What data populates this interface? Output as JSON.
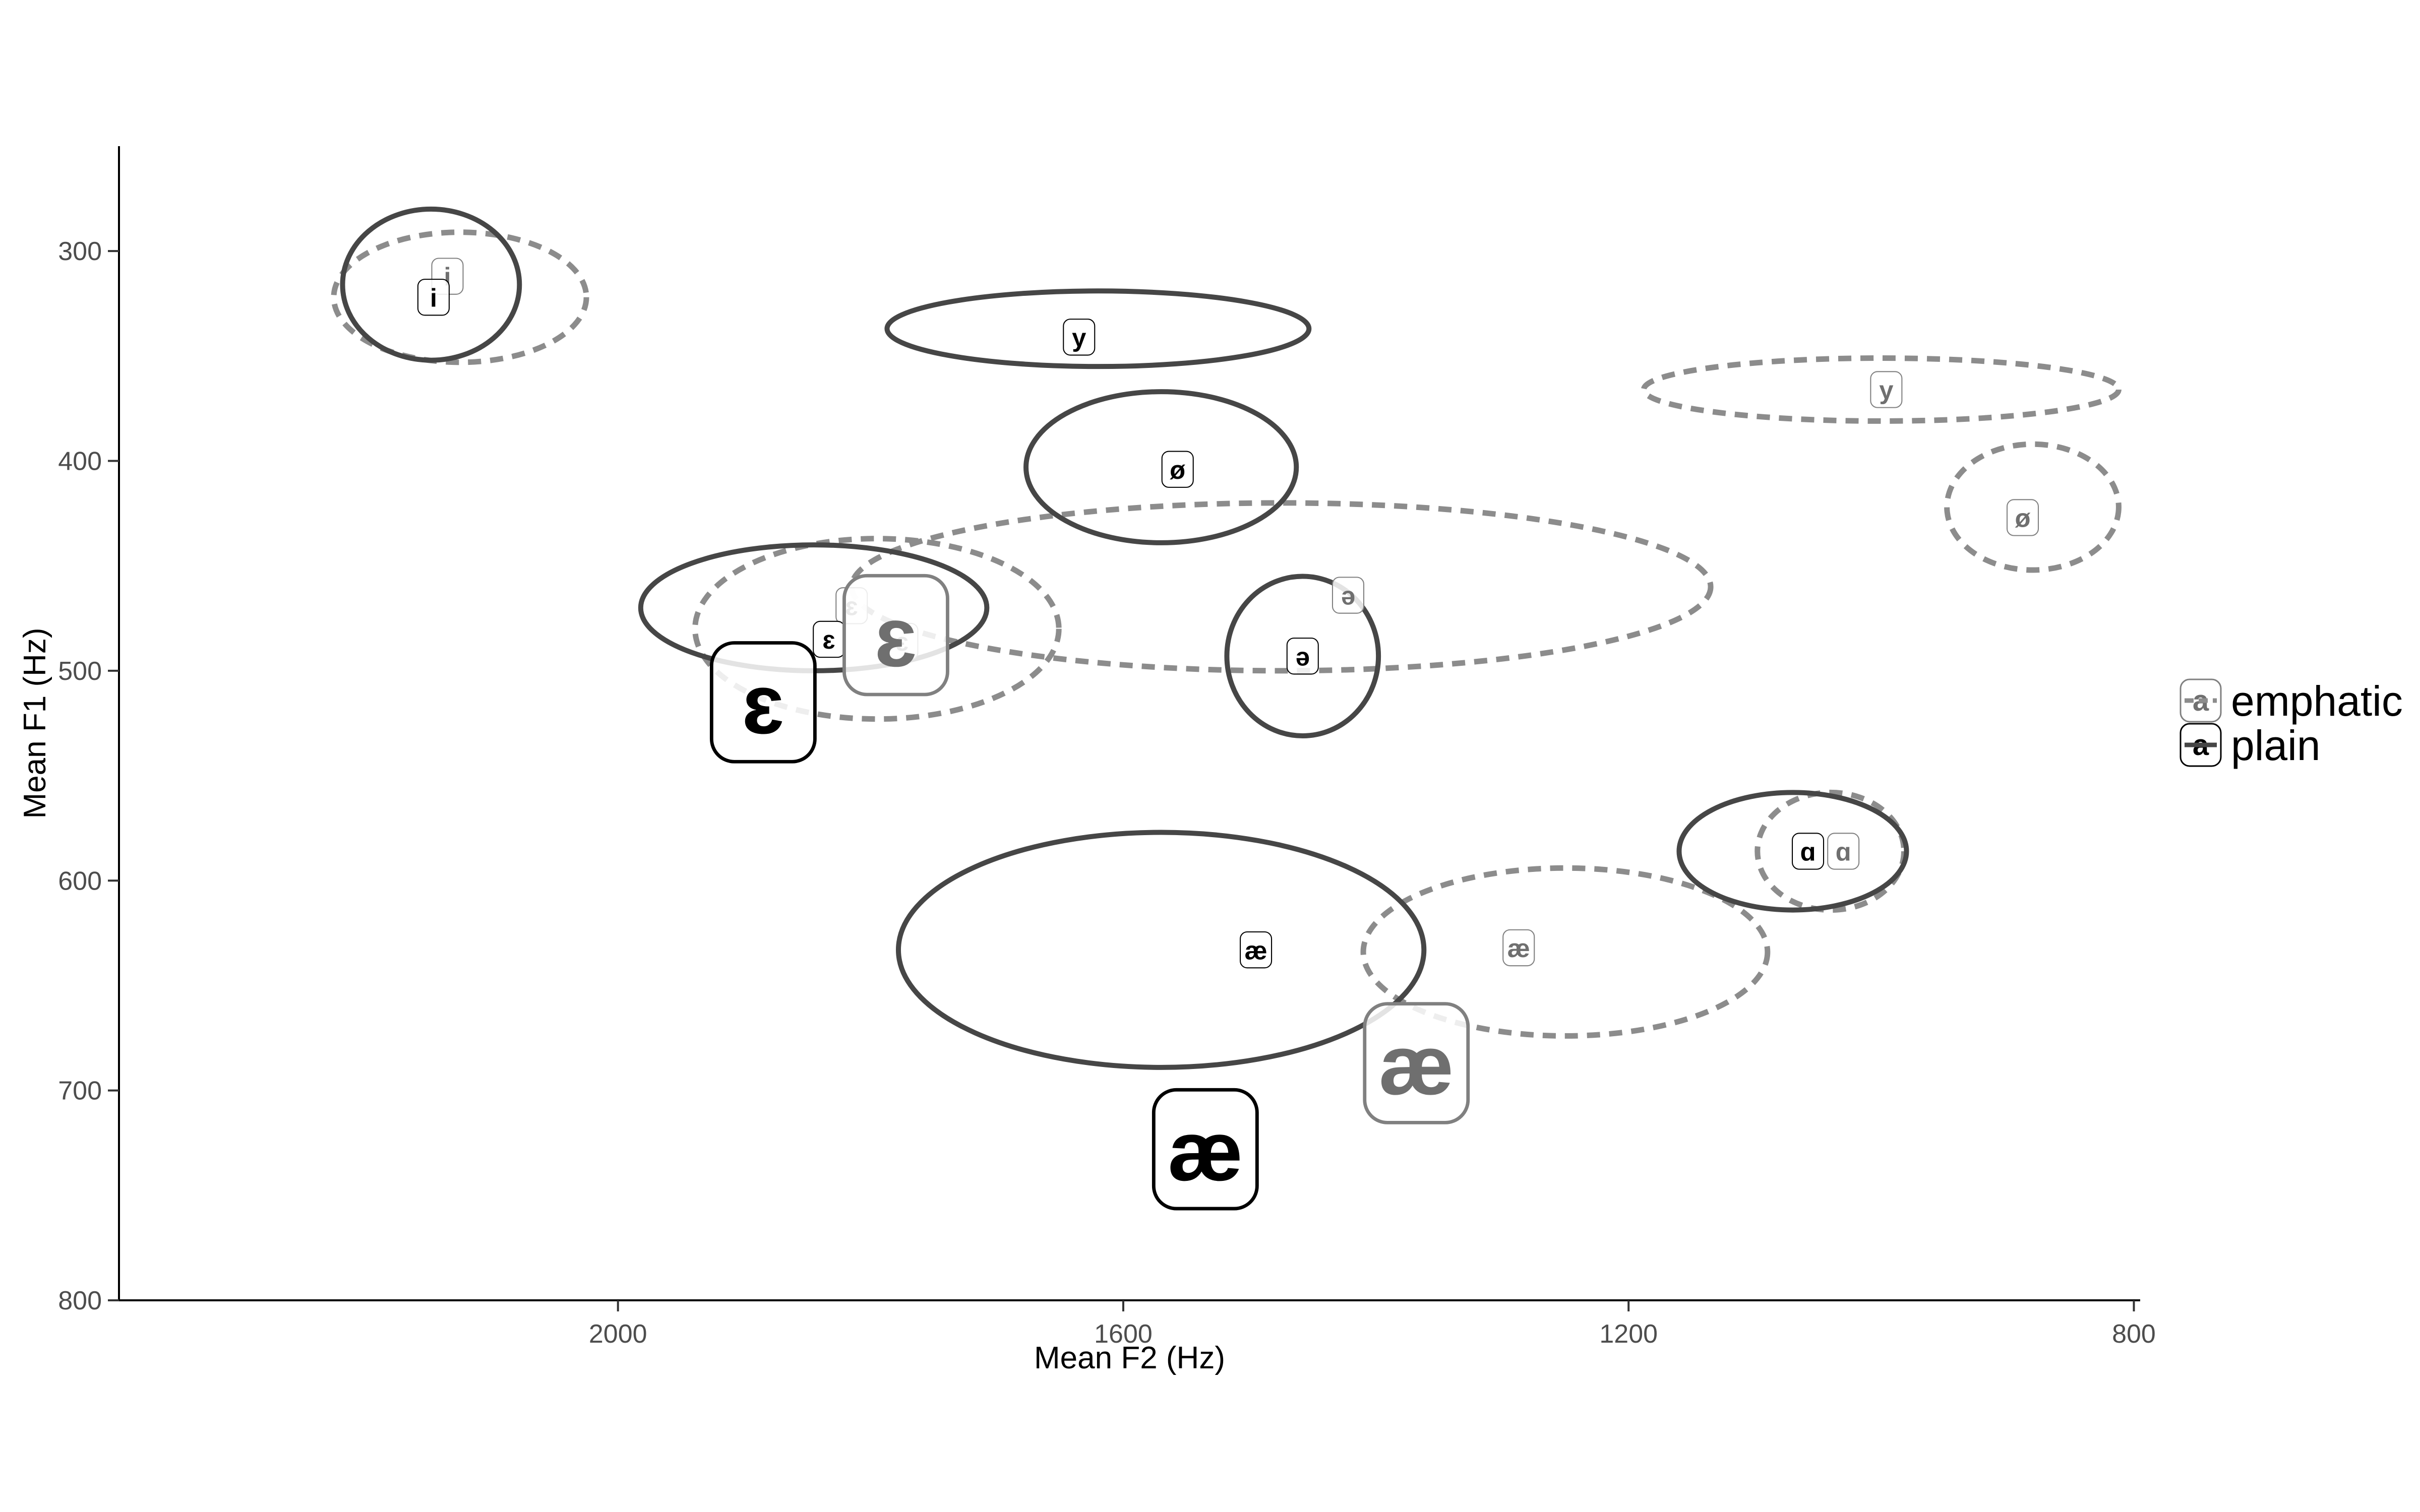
{
  "chart_data": {
    "type": "scatter",
    "title": "",
    "xlabel": "Mean F2 (Hz)",
    "ylabel": "Mean F1 (Hz)",
    "x_reversed": true,
    "y_reversed": true,
    "xlim": [
      2395,
      795
    ],
    "ylim": [
      800,
      250
    ],
    "x_ticks": [
      "2000",
      "1600",
      "1200",
      "800"
    ],
    "x_tick_values": [
      2000,
      1600,
      1200,
      800
    ],
    "y_ticks": [
      "300",
      "400",
      "500",
      "600",
      "700",
      "800"
    ],
    "y_tick_values": [
      300,
      400,
      500,
      600,
      700,
      800
    ],
    "grid": false,
    "legend_position": "right",
    "legend": [
      {
        "key": "emphatic",
        "label": "emphatic",
        "color": "#808080",
        "linetype": "dashed"
      },
      {
        "key": "plain",
        "label": "plain",
        "color": "#000000",
        "linetype": "solid"
      }
    ],
    "series": [
      {
        "name": "emphatic",
        "color": "#808080",
        "points": [
          {
            "vowel": "i",
            "f2": 2135,
            "f1": 312
          },
          {
            "vowel": "y",
            "f2": 996,
            "f1": 366
          },
          {
            "vowel": "ø",
            "f2": 888,
            "f1": 427
          },
          {
            "vowel": "ɛ",
            "f2": 1815,
            "f1": 469
          },
          {
            "vowel": "ɛ",
            "f2": 1775,
            "f1": 486
          },
          {
            "vowel": "ə",
            "f2": 1422,
            "f1": 464
          },
          {
            "vowel": "æ",
            "f2": 1287,
            "f1": 632
          },
          {
            "vowel": "ɑ",
            "f2": 1030,
            "f1": 586
          }
        ],
        "ellipses": [
          {
            "vowel": "i",
            "center": [
              2125,
              322
            ],
            "radius_f2": 100,
            "radius_f1": 31,
            "angle_deg": 0
          },
          {
            "vowel": "y",
            "center": [
              1000,
              366
            ],
            "radius_f2": 188,
            "radius_f1": 15,
            "angle_deg": 0
          },
          {
            "vowel": "ø",
            "center": [
              880,
              422
            ],
            "radius_f2": 68,
            "radius_f1": 30,
            "angle_deg": 0
          },
          {
            "vowel": "ɛ",
            "center": [
              1795,
              480
            ],
            "radius_f2": 144,
            "radius_f1": 43,
            "angle_deg": 0
          },
          {
            "vowel": "ə",
            "center": [
              1475,
              460
            ],
            "radius_f2": 340,
            "radius_f1": 40,
            "angle_deg": 0
          },
          {
            "vowel": "æ",
            "center": [
              1250,
              634
            ],
            "radius_f2": 160,
            "radius_f1": 40,
            "angle_deg": 0
          },
          {
            "vowel": "ɑ",
            "center": [
              1040,
              586
            ],
            "radius_f2": 58,
            "radius_f1": 28,
            "angle_deg": 0
          }
        ],
        "mean_labels": [
          {
            "vowel": "ɛ",
            "f2": 1780,
            "f1": 483
          },
          {
            "vowel": "æ",
            "f2": 1368,
            "f1": 687
          }
        ]
      },
      {
        "name": "plain",
        "color": "#000000",
        "points": [
          {
            "vowel": "i",
            "f2": 2146,
            "f1": 322
          },
          {
            "vowel": "y",
            "f2": 1635,
            "f1": 341
          },
          {
            "vowel": "ø",
            "f2": 1557,
            "f1": 404
          },
          {
            "vowel": "ɛ",
            "f2": 1833,
            "f1": 485
          },
          {
            "vowel": "ə",
            "f2": 1458,
            "f1": 493
          },
          {
            "vowel": "æ",
            "f2": 1495,
            "f1": 633
          },
          {
            "vowel": "ɑ",
            "f2": 1058,
            "f1": 586
          }
        ],
        "ellipses": [
          {
            "vowel": "i",
            "center": [
              2148,
              316
            ],
            "radius_f2": 70,
            "radius_f1": 36,
            "angle_deg": 0
          },
          {
            "vowel": "y",
            "center": [
              1620,
              337
            ],
            "radius_f2": 167,
            "radius_f1": 18,
            "angle_deg": 0
          },
          {
            "vowel": "ø",
            "center": [
              1570,
              403
            ],
            "radius_f2": 107,
            "radius_f1": 36,
            "angle_deg": 0
          },
          {
            "vowel": "ɛ",
            "center": [
              1845,
              470
            ],
            "radius_f2": 137,
            "radius_f1": 30,
            "angle_deg": 0
          },
          {
            "vowel": "ə",
            "center": [
              1458,
              493
            ],
            "radius_f2": 60,
            "radius_f1": 38,
            "angle_deg": 0
          },
          {
            "vowel": "æ",
            "center": [
              1570,
              633
            ],
            "radius_f2": 208,
            "radius_f1": 56,
            "angle_deg": 0
          },
          {
            "vowel": "ɑ",
            "center": [
              1070,
              586
            ],
            "radius_f2": 90,
            "radius_f1": 28,
            "angle_deg": 0
          }
        ],
        "mean_labels": [
          {
            "vowel": "ɛ",
            "f2": 1885,
            "f1": 515
          },
          {
            "vowel": "æ",
            "f2": 1535,
            "f1": 728
          }
        ]
      }
    ]
  }
}
